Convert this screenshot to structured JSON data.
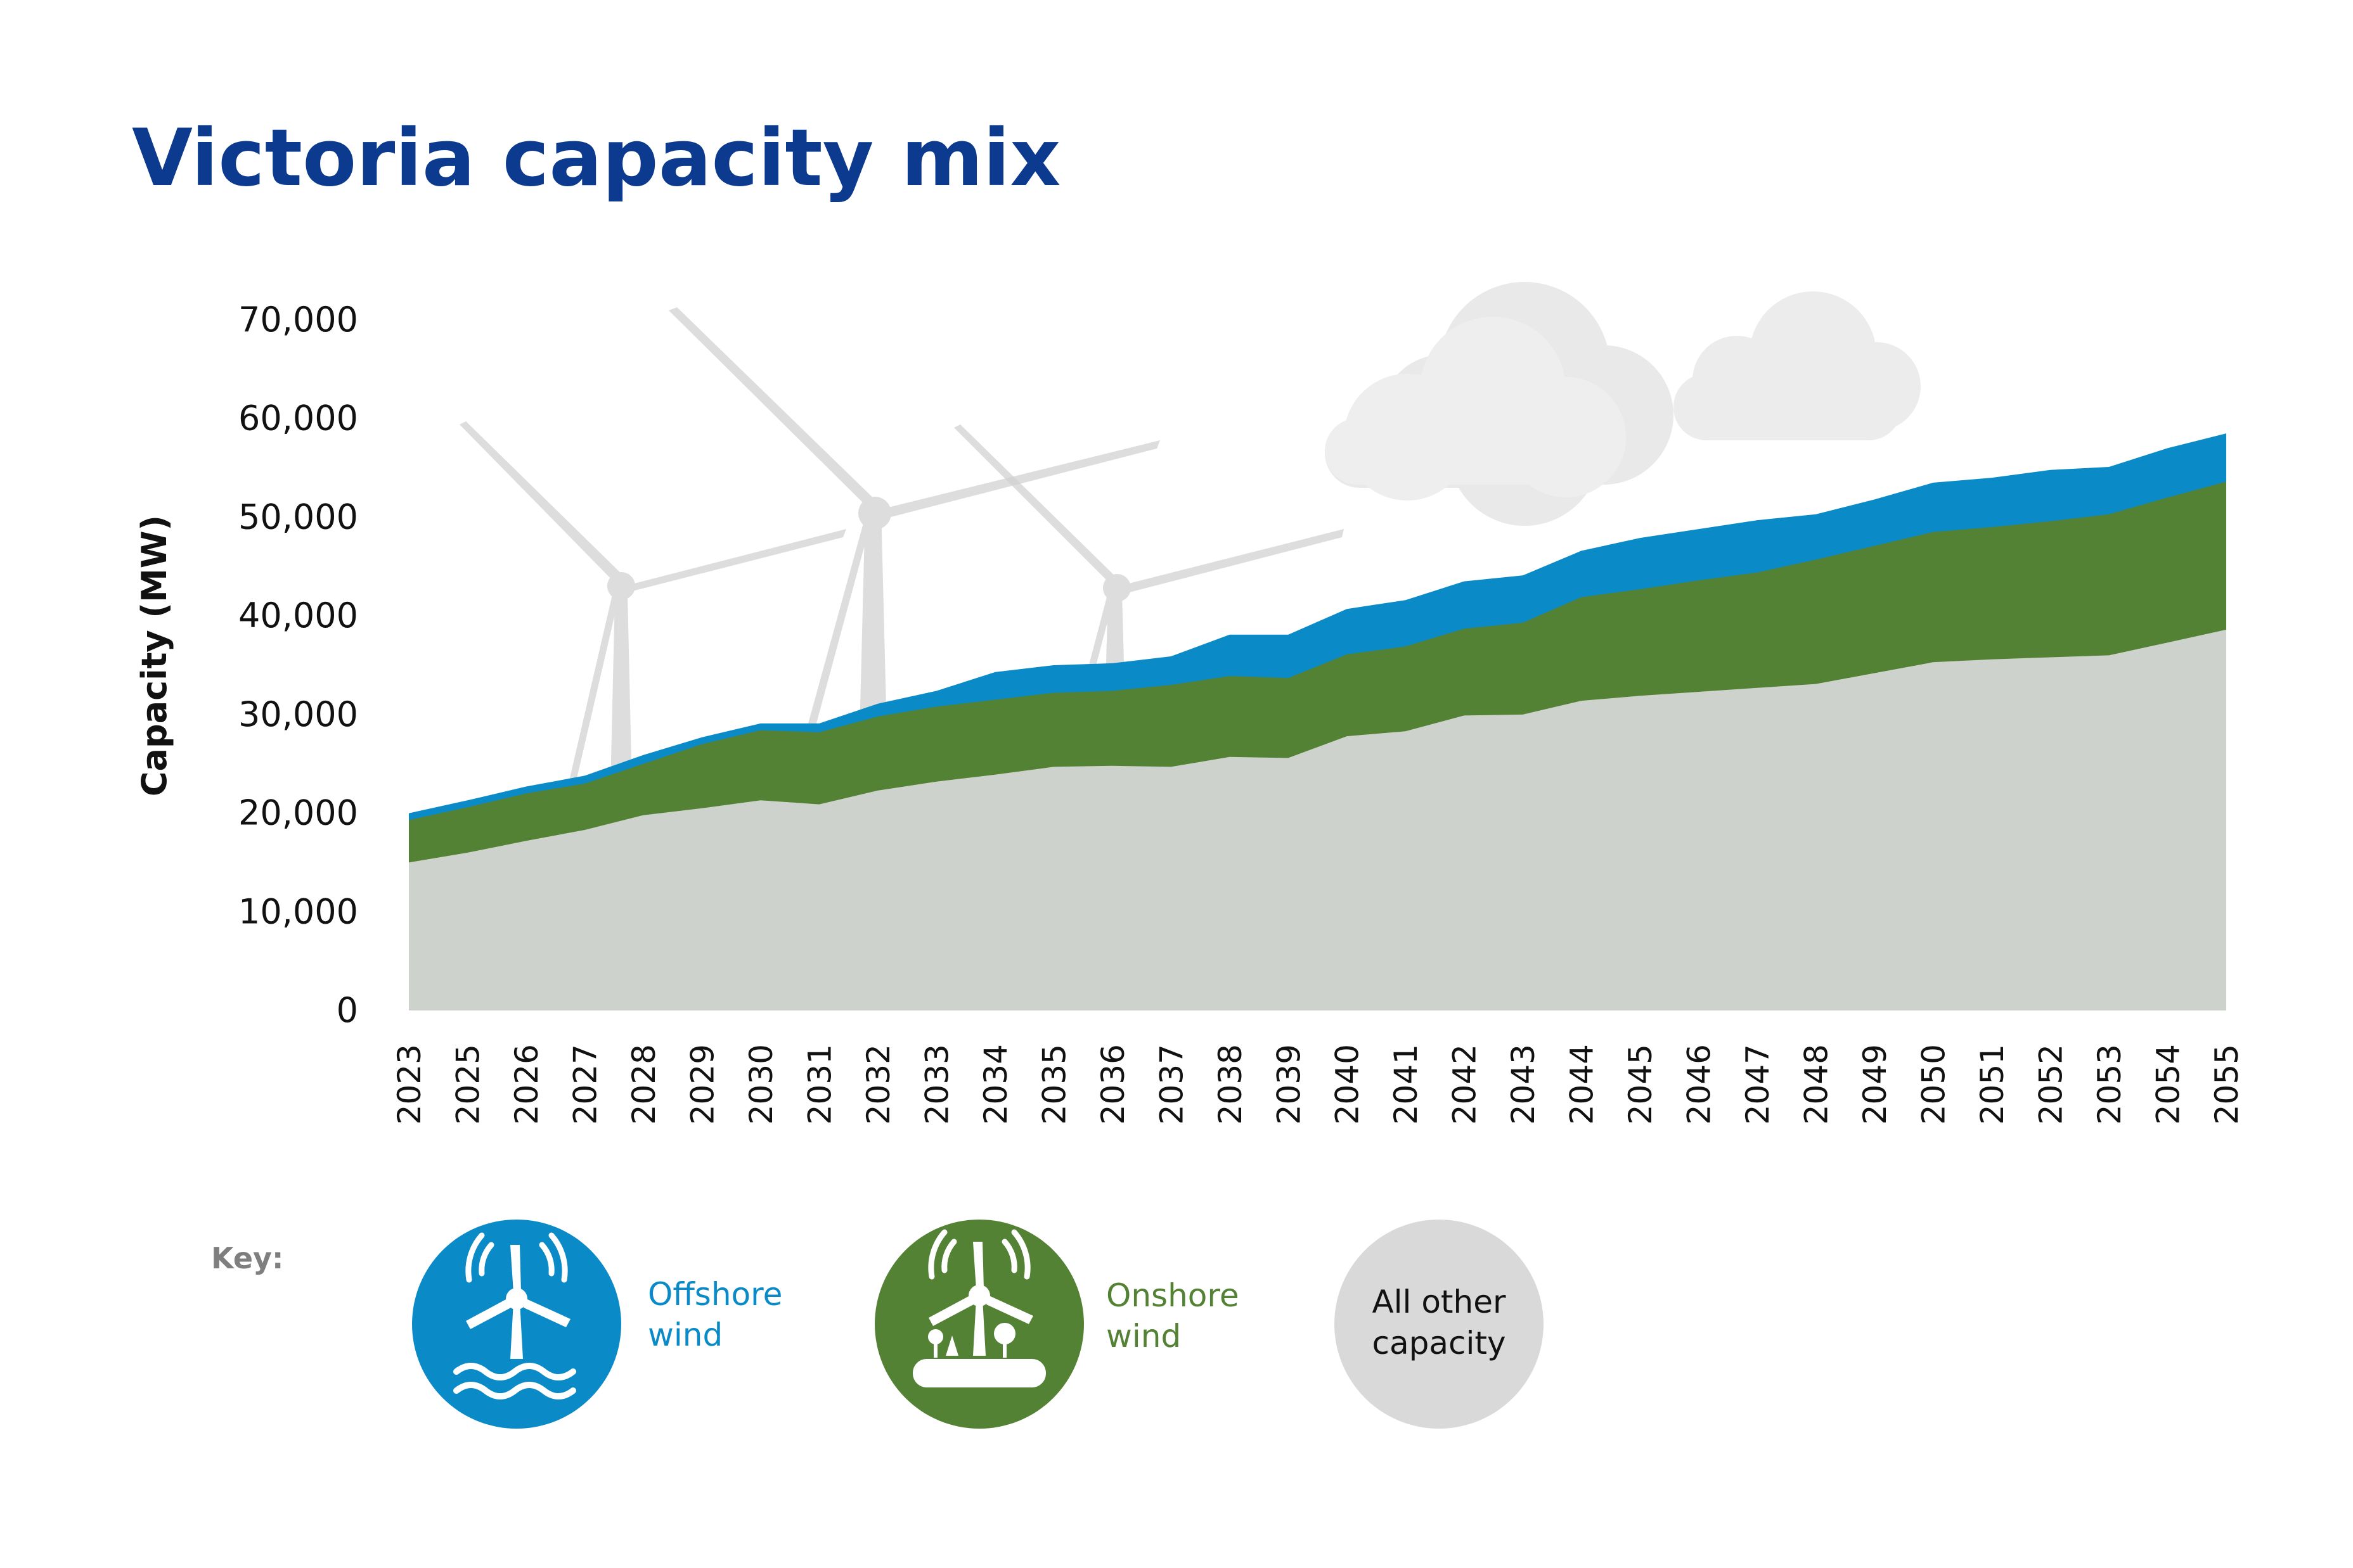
{
  "colors": {
    "title": "#0b3a8f",
    "offshore": "#0a8ac6",
    "onshore": "#548235",
    "other": "#d9d9d9",
    "axis_text": "#111111",
    "key_label": "#7f7f7f",
    "decor": "#bfbfbf"
  },
  "icons": {
    "offshore": "offshore-wind-turbine-icon",
    "onshore": "onshore-wind-turbine-icon",
    "background": [
      "wind-turbine-icon",
      "cloud-icon"
    ]
  },
  "chart_data": {
    "type": "area",
    "stacked": true,
    "title": "Victoria capacity mix",
    "ylabel": "Capacity (MW)",
    "xlabel": "",
    "ylim": [
      0,
      70000
    ],
    "yticks": [
      0,
      10000,
      20000,
      30000,
      40000,
      50000,
      60000,
      70000
    ],
    "ytick_labels": [
      "0",
      "10,000",
      "20,000",
      "30,000",
      "40,000",
      "50,000",
      "60,000",
      "70,000"
    ],
    "grid": false,
    "legend_position": "bottom",
    "categories": [
      "2023",
      "2025",
      "2026",
      "2027",
      "2028",
      "2029",
      "2030",
      "2031",
      "2032",
      "2033",
      "2034",
      "2035",
      "2036",
      "2037",
      "2038",
      "2039",
      "2040",
      "2041",
      "2042",
      "2043",
      "2044",
      "2045",
      "2046",
      "2047",
      "2048",
      "2049",
      "2050",
      "2051",
      "2052",
      "2053",
      "2054",
      "2055"
    ],
    "series": [
      {
        "key": "other",
        "name": "All other capacity",
        "values": [
          15000,
          16000,
          17200,
          18300,
          19800,
          20500,
          21300,
          20900,
          22300,
          23200,
          23900,
          24700,
          24800,
          24700,
          25700,
          25600,
          27800,
          28300,
          29900,
          30000,
          31400,
          31900,
          32300,
          32700,
          33100,
          34200,
          35300,
          35600,
          35800,
          36000,
          37300,
          38600
        ]
      },
      {
        "key": "onshore",
        "name": "Onshore wind",
        "values": [
          4300,
          4600,
          4800,
          4700,
          5200,
          6500,
          7100,
          7300,
          7500,
          7600,
          7600,
          7500,
          7600,
          8300,
          8200,
          8100,
          8300,
          8600,
          8800,
          9300,
          10500,
          10800,
          11300,
          11700,
          12600,
          12900,
          13200,
          13400,
          13800,
          14300,
          14700,
          15000
        ]
      },
      {
        "key": "offshore",
        "name": "Offshore wind",
        "values": [
          700,
          700,
          700,
          800,
          900,
          700,
          700,
          900,
          1300,
          1600,
          2800,
          2800,
          2800,
          2900,
          4200,
          4400,
          4600,
          4700,
          4800,
          4800,
          4700,
          5200,
          5200,
          5300,
          4600,
          4700,
          5000,
          5000,
          5200,
          4800,
          5000,
          4900
        ]
      }
    ]
  },
  "legend": {
    "label": "Key:",
    "items": [
      {
        "key": "offshore",
        "line1": "Offshore",
        "line2": "wind"
      },
      {
        "key": "onshore",
        "line1": "Onshore",
        "line2": "wind"
      },
      {
        "key": "other",
        "line1": "All other",
        "line2": "capacity"
      }
    ]
  }
}
